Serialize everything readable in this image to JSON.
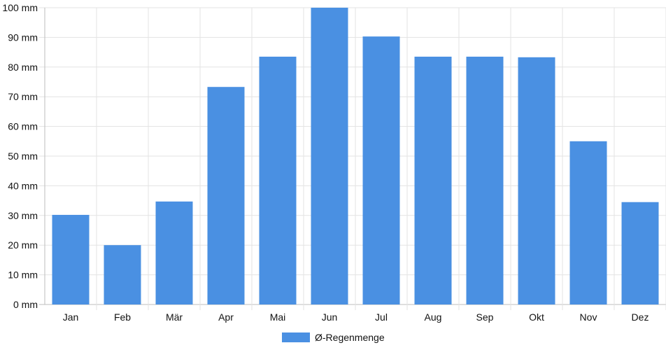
{
  "chart_data": {
    "type": "bar",
    "categories": [
      "Jan",
      "Feb",
      "Mär",
      "Apr",
      "Mai",
      "Jun",
      "Jul",
      "Aug",
      "Sep",
      "Okt",
      "Nov",
      "Dez"
    ],
    "series": [
      {
        "name": "Ø-Regenmenge",
        "color": "#4a90e2",
        "values": [
          30.2,
          20,
          34.7,
          73.3,
          83.5,
          100,
          90.3,
          83.5,
          83.5,
          83.3,
          55,
          34.5
        ]
      }
    ],
    "y_ticks": [
      "0 mm",
      "10 mm",
      "20 mm",
      "30 mm",
      "40 mm",
      "50 mm",
      "60 mm",
      "70 mm",
      "80 mm",
      "90 mm",
      "100 mm"
    ],
    "ylim": [
      0,
      100
    ],
    "grid": true,
    "legend_position": "bottom-center"
  }
}
